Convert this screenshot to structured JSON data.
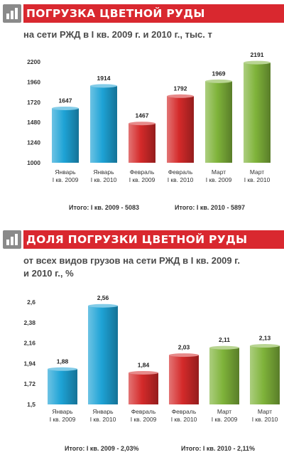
{
  "section1": {
    "title": "ПОГРУЗКА ЦВЕТНОЙ РУДЫ",
    "subtitle": "на сети РЖД в I кв. 2009 г. и 2010 г., тыс. т",
    "total_2009": "Итого: I кв. 2009 - 5083",
    "total_2010": "Итого: I кв. 2010 - 5897"
  },
  "section2": {
    "title": "ДОЛЯ ПОГРУЗКИ ЦВЕТНОЙ РУДЫ",
    "subtitle_line1": "от всех видов грузов на сети РЖД в I кв. 2009 г.",
    "subtitle_line2": "и 2010 г., %",
    "total_2009": "Итого: I кв. 2009 - 2,03%",
    "total_2010": "Итого: I кв. 2010 - 2,11%"
  },
  "colors": {
    "header_red": "#d9282f",
    "january": "#1ea3d6",
    "february": "#d42a2a",
    "march": "#7fb33a"
  },
  "chart_data": [
    {
      "type": "bar",
      "categories": [
        [
          "Январь",
          "I кв. 2009"
        ],
        [
          "Январь",
          "I кв. 2010"
        ],
        [
          "Февраль",
          "I кв. 2009"
        ],
        [
          "Февраль",
          "I кв. 2010"
        ],
        [
          "Март",
          "I кв. 2009"
        ],
        [
          "Март",
          "I кв. 2010"
        ]
      ],
      "values": [
        1647,
        1914,
        1467,
        1792,
        1969,
        2191
      ],
      "value_labels": [
        "1647",
        "1914",
        "1467",
        "1792",
        "1969",
        "2191"
      ],
      "bar_colors": [
        "january",
        "january",
        "february",
        "february",
        "march",
        "march"
      ],
      "yticks": [
        "1000",
        "1240",
        "1480",
        "1720",
        "1960",
        "2200"
      ],
      "ytick_values": [
        1000,
        1240,
        1480,
        1720,
        1960,
        2200
      ],
      "ylim": [
        1000,
        2200
      ]
    },
    {
      "type": "bar",
      "categories": [
        [
          "Январь",
          "I кв. 2009"
        ],
        [
          "Январь",
          "I кв. 2010"
        ],
        [
          "Февраль",
          "I кв. 2009"
        ],
        [
          "Февраль",
          "I кв. 2010"
        ],
        [
          "Март",
          "I кв. 2009"
        ],
        [
          "Март",
          "I кв. 2010"
        ]
      ],
      "values": [
        1.88,
        2.56,
        1.84,
        2.03,
        2.11,
        2.13
      ],
      "value_labels": [
        "1,88",
        "2,56",
        "1,84",
        "2,03",
        "2,11",
        "2,13"
      ],
      "bar_colors": [
        "january",
        "january",
        "february",
        "february",
        "march",
        "march"
      ],
      "yticks": [
        "1,5",
        "1,72",
        "1,94",
        "2,16",
        "2,38",
        "2,6"
      ],
      "ytick_values": [
        1.5,
        1.72,
        1.94,
        2.16,
        2.38,
        2.6
      ],
      "ylim": [
        1.5,
        2.6
      ]
    }
  ]
}
